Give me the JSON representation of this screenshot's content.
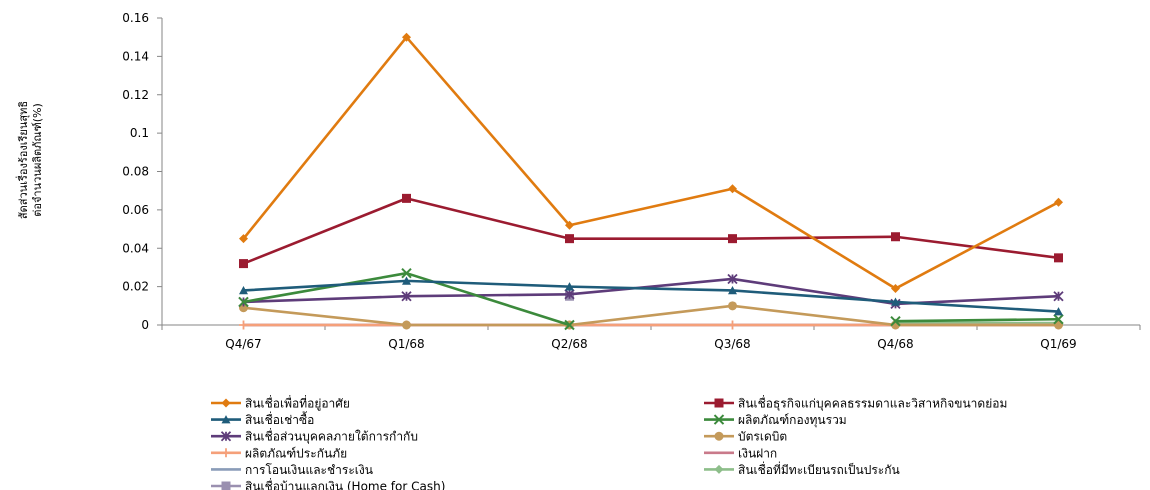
{
  "chart_data": {
    "type": "line",
    "title": "",
    "xlabel": "",
    "ylabel": "สัดส่วนเรื่องร้องเรียนสุทธิต่อจำนวนผลิตภัณฑ์(%)",
    "ylabel_lines": [
      "สัดส่วนเรื่องร้องเรียนสุทธิ",
      "ต่อจำนวนผลิตภัณฑ์(%)"
    ],
    "categories": [
      "Q4/67",
      "Q1/68",
      "Q2/68",
      "Q3/68",
      "Q4/68",
      "Q1/69"
    ],
    "ylim": [
      0,
      0.16
    ],
    "yticks": [
      0,
      0.02,
      0.04,
      0.06,
      0.08,
      0.1,
      0.12,
      0.14,
      0.16
    ],
    "ytick_labels": [
      "0",
      "0.02",
      "0.04",
      "0.06",
      "0.08",
      "0.1",
      "0.12",
      "0.14",
      "0.16"
    ],
    "grid": false,
    "legend_position": "bottom",
    "series": [
      {
        "name": "สินเชื่อเพื่อที่อยู่อาศัย",
        "color": "#E07B10",
        "marker": "diamond",
        "values": [
          0.045,
          0.15,
          0.052,
          0.071,
          0.019,
          0.064
        ]
      },
      {
        "name": "สินเชื่อธุรกิจแก่บุคคลธรรมดาและวิสาหกิจขนาดย่อม",
        "color": "#9B1B30",
        "marker": "square",
        "values": [
          0.032,
          0.066,
          0.045,
          0.045,
          0.046,
          0.035
        ]
      },
      {
        "name": "สินเชื่อเช่าซื้อ",
        "color": "#1F5C7A",
        "marker": "triangle",
        "values": [
          0.018,
          0.023,
          0.02,
          0.018,
          0.012,
          0.007
        ]
      },
      {
        "name": "ผลิตภัณฑ์กองทุนรวม",
        "color": "#3C8A3C",
        "marker": "x",
        "values": [
          0.012,
          0.027,
          0.0,
          null,
          0.002,
          0.003
        ]
      },
      {
        "name": "สินเชื่อส่วนบุคคลภายใต้การกำกับ",
        "color": "#5E3C7A",
        "marker": "star",
        "values": [
          0.012,
          0.015,
          0.016,
          0.024,
          0.011,
          0.015
        ]
      },
      {
        "name": "บัตรเดบิต",
        "color": "#C49A5A",
        "marker": "circle",
        "values": [
          0.009,
          0.0,
          0.0,
          0.01,
          0.0,
          0.0
        ]
      },
      {
        "name": "ผลิตภัณฑ์ประกันภัย",
        "color": "#F5A07A",
        "marker": "plus",
        "values": [
          0.0,
          0.0,
          0.0,
          0.0,
          0.0,
          0.0
        ]
      },
      {
        "name": "เงินฝาก",
        "color": "#C97A8A",
        "marker": "none",
        "values": [
          0.0,
          0.0,
          0.0,
          0.0,
          0.0,
          0.0
        ]
      },
      {
        "name": "การโอนเงินและชำระเงิน",
        "color": "#8A9CB8",
        "marker": "none",
        "values": [
          0.0,
          0.0,
          0.0,
          0.0,
          0.0,
          0.0
        ]
      },
      {
        "name": "สินเชื่อที่มีทะเบียนรถเป็นประกัน",
        "color": "#8DBE8A",
        "marker": "diamond",
        "values": [
          null,
          null,
          null,
          null,
          0.001,
          0.001
        ]
      },
      {
        "name": "สินเชื่อบ้านแลกเงิน (Home for Cash)",
        "color": "#9A90B0",
        "marker": "square",
        "values": [
          null,
          null,
          0.015,
          null,
          null,
          null
        ]
      }
    ]
  }
}
